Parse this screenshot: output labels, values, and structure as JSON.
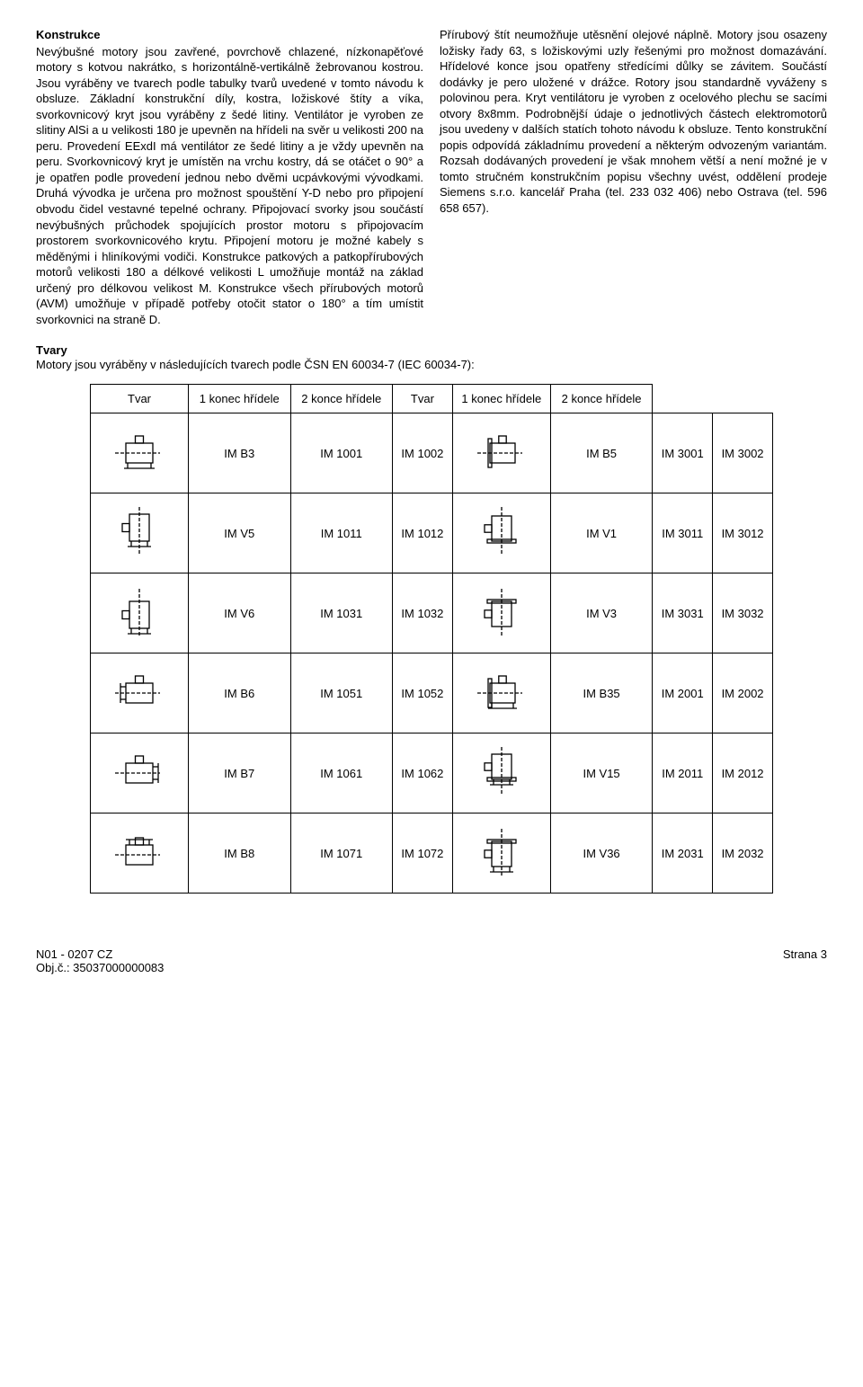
{
  "left": {
    "heading": "Konstrukce",
    "body": "Nevýbušné motory jsou zavřené, povrchově chlazené, nízkonapěťové motory s kotvou nakrátko, s horizontálně-vertikálně žebrovanou kostrou. Jsou vyráběny ve tvarech podle tabulky tvarů uvedené v tomto návodu k obsluze. Základní konstrukční díly, kostra, ložiskové štíty a víka, svorkovnicový kryt jsou vyráběny z šedé litiny. Ventilátor je vyroben ze slitiny AlSi a u velikosti 180 je upevněn na hřídeli na svěr u velikosti 200 na peru. Provedení EExdI má ventilátor ze šedé litiny a je vždy upevněn na peru. Svorkovnicový kryt je umístěn na vrchu kostry, dá se otáčet o 90° a je opatřen podle provedení jednou nebo dvěmi ucpávkovými vývodkami. Druhá vývodka je určena pro možnost spouštění Y-D nebo pro připojení obvodu čidel vestavné tepelné ochrany. Připojovací svorky jsou součástí nevýbušných průchodek spojujících prostor motoru s připojovacím prostorem svorkovnicového krytu. Připojení motoru je možné kabely s měděnými i hliníkovými vodiči. Konstrukce patkových a patkopřírubových motorů velikosti 180 a délkové velikosti L umožňuje montáž na základ určený pro délkovou velikost M. Konstrukce všech přírubových motorů (AVM) umožňuje v případě potřeby otočit stator o 180° a tím umístit svorkovnici na straně D."
  },
  "right": {
    "body": "Přírubový štít neumožňuje utěsnění olejové náplně. Motory jsou osazeny ložisky řady 63, s ložiskovými uzly řešenými pro možnost domazávání. Hřídelové konce jsou opatřeny středícími důlky se závitem. Součástí dodávky je pero uložené v drážce. Rotory jsou standardně vyváženy s polovinou pera. Kryt ventilátoru je vyroben z ocelového plechu se sacími otvory 8x8mm. Podrobnější údaje o jednotlivých částech elektromotorů jsou uvedeny v dalších statích tohoto návodu k obsluze. Tento konstrukční popis odpovídá základnímu provedení a některým odvozeným variantám. Rozsah dodávaných provedení je však mnohem větší a není možné je v tomto stručném konstrukčním popisu všechny uvést, oddělení prodeje Siemens s.r.o. kancelář Praha (tel. 233 032 406) nebo Ostrava (tel. 596 658 657)."
  },
  "shapes": {
    "heading": "Tvary",
    "intro": "Motory jsou vyráběny v následujících tvarech podle ČSN EN 60034-7 (IEC 60034-7):",
    "headers": {
      "tvar": "Tvar",
      "one_shaft": "1 konec hřídele",
      "two_shaft": "2 konce hřídele"
    },
    "rows": [
      {
        "left": {
          "code": "IM B3",
          "one": "IM 1001",
          "two": "IM 1002"
        },
        "right": {
          "code": "IM B5",
          "one": "IM 3001",
          "two": "IM 3002"
        }
      },
      {
        "left": {
          "code": "IM V5",
          "one": "IM 1011",
          "two": "IM 1012"
        },
        "right": {
          "code": "IM V1",
          "one": "IM 3011",
          "two": "IM 3012"
        }
      },
      {
        "left": {
          "code": "IM V6",
          "one": "IM 1031",
          "two": "IM 1032"
        },
        "right": {
          "code": "IM V3",
          "one": "IM 3031",
          "two": "IM 3032"
        }
      },
      {
        "left": {
          "code": "IM B6",
          "one": "IM 1051",
          "two": "IM 1052"
        },
        "right": {
          "code": "IM B35",
          "one": "IM 2001",
          "two": "IM 2002"
        }
      },
      {
        "left": {
          "code": "IM B7",
          "one": "IM 1061",
          "two": "IM 1062"
        },
        "right": {
          "code": "IM V15",
          "one": "IM 2011",
          "two": "IM 2012"
        }
      },
      {
        "left": {
          "code": "IM B8",
          "one": "IM 1071",
          "two": "IM 1072"
        },
        "right": {
          "code": "IM V36",
          "one": "IM 2031",
          "two": "IM 2032"
        }
      }
    ]
  },
  "footer": {
    "left1": "N01 - 0207 CZ",
    "left2": "Obj.č.: 35037000000083",
    "right": "Strana 3"
  }
}
